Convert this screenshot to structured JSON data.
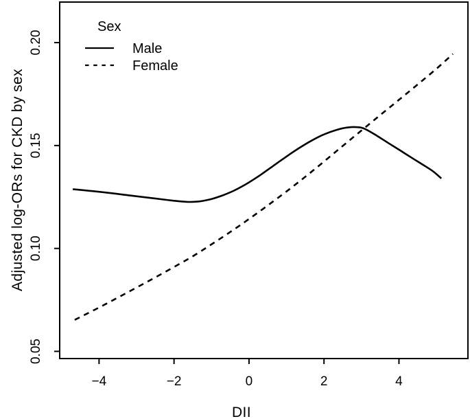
{
  "figure": {
    "background_color": "#ffffff",
    "foreground_color": "#000000"
  },
  "chart_data": {
    "type": "line",
    "title": "",
    "xlabel": "DII",
    "ylabel": "Adjusted log-ORs for CKD by sex",
    "xlim": [
      -5.05,
      5.84
    ],
    "ylim": [
      0.0465,
      0.2197
    ],
    "x_ticks": [
      -4,
      -2,
      0,
      2,
      4
    ],
    "x_tick_labels": [
      "−4",
      "−2",
      "0",
      "2",
      "4"
    ],
    "y_ticks": [
      0.05,
      0.1,
      0.15,
      0.2
    ],
    "y_tick_labels": [
      "0.05",
      "0.10",
      "0.15",
      "0.20"
    ],
    "grid": false,
    "legend": {
      "title": "Sex",
      "position": "top-left",
      "entries": [
        {
          "label": "Male",
          "line_style": "solid"
        },
        {
          "label": "Female",
          "line_style": "dashed"
        }
      ]
    },
    "series": [
      {
        "name": "Male",
        "line_style": "solid",
        "color": "#000000",
        "points": [
          [
            -4.7,
            0.1288
          ],
          [
            -4.2,
            0.1279
          ],
          [
            -3.7,
            0.1269
          ],
          [
            -3.2,
            0.1258
          ],
          [
            -2.7,
            0.1247
          ],
          [
            -2.2,
            0.1236
          ],
          [
            -1.9,
            0.123
          ],
          [
            -1.6,
            0.1226
          ],
          [
            -1.3,
            0.1229
          ],
          [
            -1.0,
            0.124
          ],
          [
            -0.7,
            0.1258
          ],
          [
            -0.4,
            0.1281
          ],
          [
            -0.1,
            0.131
          ],
          [
            0.2,
            0.1344
          ],
          [
            0.5,
            0.1382
          ],
          [
            0.8,
            0.1421
          ],
          [
            1.1,
            0.1459
          ],
          [
            1.4,
            0.1495
          ],
          [
            1.7,
            0.1527
          ],
          [
            2.0,
            0.1554
          ],
          [
            2.3,
            0.1574
          ],
          [
            2.6,
            0.1587
          ],
          [
            2.9,
            0.1589
          ],
          [
            3.1,
            0.158
          ],
          [
            3.4,
            0.1549
          ],
          [
            3.7,
            0.1514
          ],
          [
            4.0,
            0.148
          ],
          [
            4.3,
            0.1445
          ],
          [
            4.6,
            0.1411
          ],
          [
            4.9,
            0.1376
          ],
          [
            5.13,
            0.134
          ]
        ]
      },
      {
        "name": "Female",
        "line_style": "dashed",
        "color": "#000000",
        "points": [
          [
            -4.65,
            0.0653
          ],
          [
            -4.0,
            0.0713
          ],
          [
            -3.5,
            0.0761
          ],
          [
            -3.0,
            0.081
          ],
          [
            -2.5,
            0.0859
          ],
          [
            -2.0,
            0.091
          ],
          [
            -1.5,
            0.0962
          ],
          [
            -1.0,
            0.102
          ],
          [
            -0.5,
            0.108
          ],
          [
            0.0,
            0.1143
          ],
          [
            0.5,
            0.1209
          ],
          [
            1.0,
            0.1277
          ],
          [
            1.5,
            0.1348
          ],
          [
            2.0,
            0.1422
          ],
          [
            2.5,
            0.1498
          ],
          [
            3.0,
            0.1573
          ],
          [
            3.5,
            0.1648
          ],
          [
            4.0,
            0.1722
          ],
          [
            4.5,
            0.1797
          ],
          [
            5.0,
            0.1873
          ],
          [
            5.44,
            0.1945
          ]
        ]
      }
    ]
  }
}
